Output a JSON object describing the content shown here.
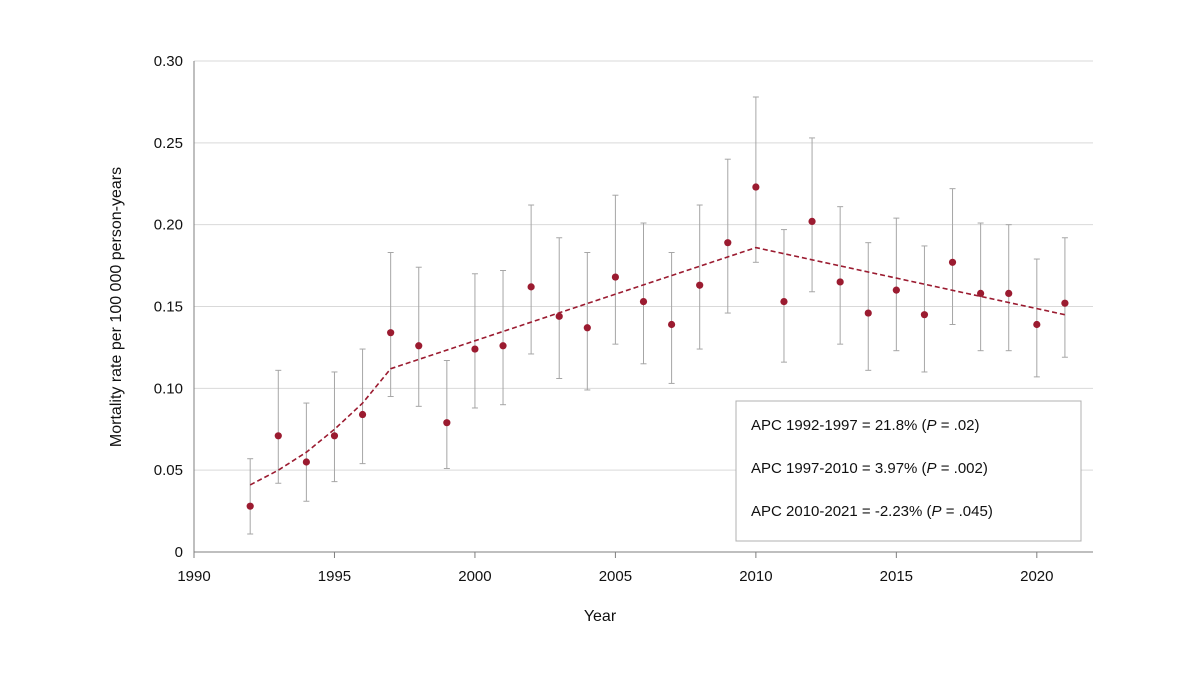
{
  "chart_data": {
    "type": "scatter",
    "title": "",
    "xlabel": "Year",
    "ylabel": "Mortality rate per 100 000 person-years",
    "xlim": [
      1990,
      2022
    ],
    "ylim": [
      0,
      0.3
    ],
    "x_ticks": [
      1990,
      1995,
      2000,
      2005,
      2010,
      2015,
      2020
    ],
    "y_ticks": [
      0,
      0.05,
      0.1,
      0.15,
      0.2,
      0.25,
      0.3
    ],
    "y_tick_labels": [
      "0",
      "0.05",
      "0.10",
      "0.15",
      "0.20",
      "0.25",
      "0.30"
    ],
    "grid": "horizontal",
    "point_color": "#9b1b30",
    "errorbar_color": "#a6a6a6",
    "trend_color": "#9b1b30",
    "points": [
      {
        "x": 1992,
        "y": 0.028,
        "lo": 0.011,
        "hi": 0.057
      },
      {
        "x": 1993,
        "y": 0.071,
        "lo": 0.042,
        "hi": 0.111
      },
      {
        "x": 1994,
        "y": 0.055,
        "lo": 0.031,
        "hi": 0.091
      },
      {
        "x": 1995,
        "y": 0.071,
        "lo": 0.043,
        "hi": 0.11
      },
      {
        "x": 1996,
        "y": 0.084,
        "lo": 0.054,
        "hi": 0.124
      },
      {
        "x": 1997,
        "y": 0.134,
        "lo": 0.095,
        "hi": 0.183
      },
      {
        "x": 1998,
        "y": 0.126,
        "lo": 0.089,
        "hi": 0.174
      },
      {
        "x": 1999,
        "y": 0.079,
        "lo": 0.051,
        "hi": 0.117
      },
      {
        "x": 2000,
        "y": 0.124,
        "lo": 0.088,
        "hi": 0.17
      },
      {
        "x": 2001,
        "y": 0.126,
        "lo": 0.09,
        "hi": 0.172
      },
      {
        "x": 2002,
        "y": 0.162,
        "lo": 0.121,
        "hi": 0.212
      },
      {
        "x": 2003,
        "y": 0.144,
        "lo": 0.106,
        "hi": 0.192
      },
      {
        "x": 2004,
        "y": 0.137,
        "lo": 0.099,
        "hi": 0.183
      },
      {
        "x": 2005,
        "y": 0.168,
        "lo": 0.127,
        "hi": 0.218
      },
      {
        "x": 2006,
        "y": 0.153,
        "lo": 0.115,
        "hi": 0.201
      },
      {
        "x": 2007,
        "y": 0.139,
        "lo": 0.103,
        "hi": 0.183
      },
      {
        "x": 2008,
        "y": 0.163,
        "lo": 0.124,
        "hi": 0.212
      },
      {
        "x": 2009,
        "y": 0.189,
        "lo": 0.146,
        "hi": 0.24
      },
      {
        "x": 2010,
        "y": 0.223,
        "lo": 0.177,
        "hi": 0.278
      },
      {
        "x": 2011,
        "y": 0.153,
        "lo": 0.116,
        "hi": 0.197
      },
      {
        "x": 2012,
        "y": 0.202,
        "lo": 0.159,
        "hi": 0.253
      },
      {
        "x": 2013,
        "y": 0.165,
        "lo": 0.127,
        "hi": 0.211
      },
      {
        "x": 2014,
        "y": 0.146,
        "lo": 0.111,
        "hi": 0.189
      },
      {
        "x": 2015,
        "y": 0.16,
        "lo": 0.123,
        "hi": 0.204
      },
      {
        "x": 2016,
        "y": 0.145,
        "lo": 0.11,
        "hi": 0.187
      },
      {
        "x": 2017,
        "y": 0.177,
        "lo": 0.139,
        "hi": 0.222
      },
      {
        "x": 2018,
        "y": 0.158,
        "lo": 0.123,
        "hi": 0.201
      },
      {
        "x": 2019,
        "y": 0.158,
        "lo": 0.123,
        "hi": 0.2
      },
      {
        "x": 2020,
        "y": 0.139,
        "lo": 0.107,
        "hi": 0.179
      },
      {
        "x": 2021,
        "y": 0.152,
        "lo": 0.119,
        "hi": 0.192
      }
    ],
    "trend": [
      {
        "x": 1992,
        "y": 0.041
      },
      {
        "x": 1993,
        "y": 0.05
      },
      {
        "x": 1994,
        "y": 0.061
      },
      {
        "x": 1995,
        "y": 0.075
      },
      {
        "x": 1996,
        "y": 0.091
      },
      {
        "x": 1997,
        "y": 0.112
      },
      {
        "x": 2010,
        "y": 0.186
      },
      {
        "x": 2021,
        "y": 0.145
      }
    ],
    "annotations": [
      {
        "lead": "APC 1992-1997 = 21.8% (",
        "p": "P",
        "tail": " = .02)"
      },
      {
        "lead": "APC 1997-2010 = 3.97% (",
        "p": "P",
        "tail": " = .002)"
      },
      {
        "lead": "APC 2010-2021 = -2.23% (",
        "p": "P",
        "tail": " = .045)"
      }
    ]
  }
}
